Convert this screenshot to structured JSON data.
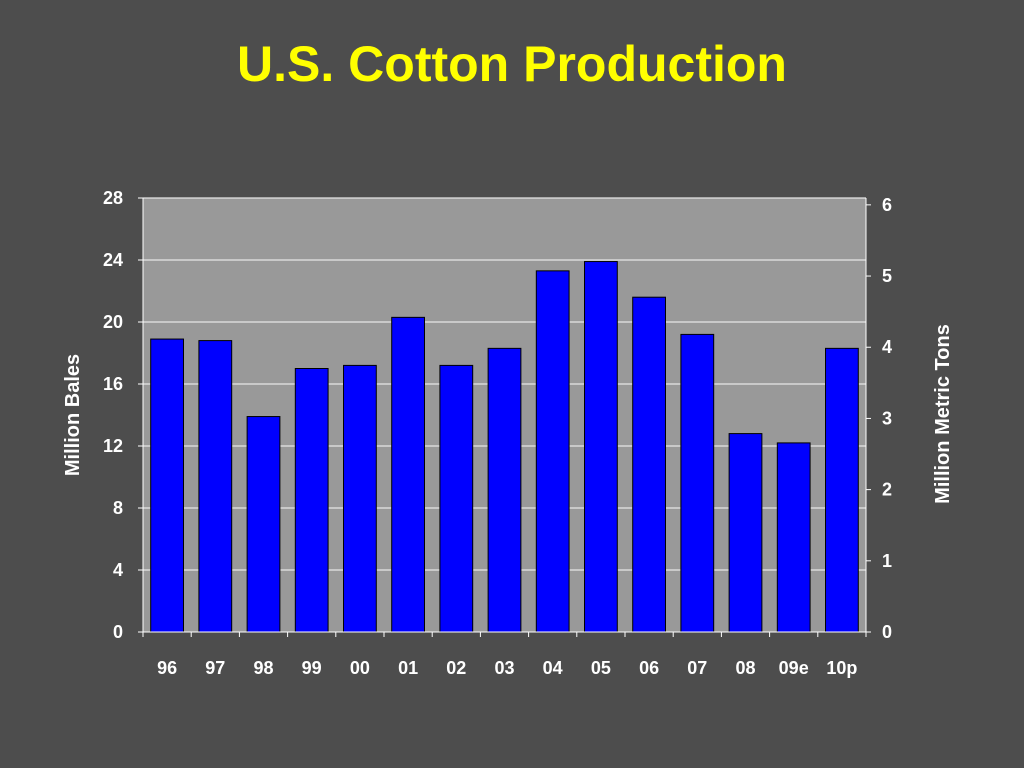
{
  "title": "U.S. Cotton Production",
  "colors": {
    "background": "#4d4d4d",
    "plot_area": "#999999",
    "bar_fill": "#0000ff",
    "title": "#ffff00",
    "text": "#ffffff"
  },
  "chart_data": {
    "type": "bar",
    "title": "U.S. Cotton Production",
    "categories": [
      "96",
      "97",
      "98",
      "99",
      "00",
      "01",
      "02",
      "03",
      "04",
      "05",
      "06",
      "07",
      "08",
      "09e",
      "10p"
    ],
    "series": [
      {
        "values": [
          18.9,
          18.8,
          13.9,
          17.0,
          17.2,
          20.3,
          17.2,
          18.3,
          23.3,
          23.9,
          21.6,
          19.2,
          12.8,
          12.2,
          18.3
        ]
      }
    ],
    "ylabel": "Million Bales",
    "ylim": [
      0,
      28
    ],
    "yticks": [
      "0",
      "4",
      "8",
      "12",
      "16",
      "20",
      "24",
      "28"
    ],
    "y2label": "Million Metric Tons",
    "y2lim": [
      0,
      6.0963
    ],
    "y2ticks": [
      "0",
      "1",
      "2",
      "3",
      "4",
      "5",
      "6"
    ],
    "grid": true,
    "legend": "none"
  }
}
